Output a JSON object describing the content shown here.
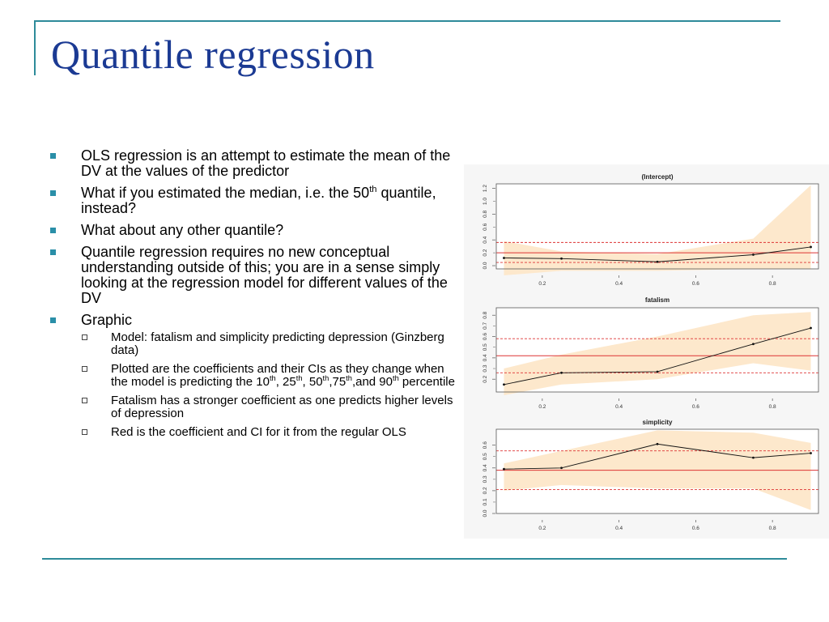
{
  "slide": {
    "title": "Quantile regression",
    "bullets": [
      {
        "text": "OLS regression is an attempt to estimate the mean of the DV at the values of the predictor"
      },
      {
        "text": "What if you estimated the median, i.e. the 50",
        "sup": "th",
        "after": " quantile, instead?"
      },
      {
        "text": "What about any other quantile?"
      },
      {
        "text": "Quantile regression requires no new conceptual understanding outside of this; you are in a sense simply looking at the regression model for different values of the DV"
      },
      {
        "text": "Graphic"
      }
    ],
    "subbullets": [
      {
        "text": "Model: fatalism and simplicity predicting depression (Ginzberg data)"
      },
      {
        "text": "Plotted are the coefficients and their CIs as they change when the model is predicting the 10",
        "sup1": "th",
        "mid1": ", 25",
        "sup2": "th",
        "mid2": ", 50",
        "sup3": "th",
        "mid3": ",75",
        "sup4": "th",
        "mid4": ",and 90",
        "sup5": "th",
        "after": " percentile"
      },
      {
        "text": "Fatalism has a stronger coefficient as one predicts higher levels of depression"
      },
      {
        "text": "Red is the coefficient and CI for it from the regular OLS"
      }
    ]
  },
  "colors": {
    "title": "#1b3a93",
    "accent_line": "#2e8b9a",
    "bullet": "#2a8fa8",
    "ci_band": "#fde8cc",
    "ols": "#dd3333",
    "axis": "#555555"
  },
  "chart_data": [
    {
      "type": "line",
      "title": "(Intercept)",
      "x": [
        0.1,
        0.25,
        0.5,
        0.75,
        0.9
      ],
      "series": [
        {
          "values": [
            0.12,
            0.11,
            0.06,
            0.17,
            0.29
          ]
        }
      ],
      "ci_lower": [
        -0.15,
        -0.08,
        -0.08,
        -0.05,
        -0.05
      ],
      "ci_upper": [
        0.38,
        0.22,
        0.18,
        0.42,
        1.25
      ],
      "ols": {
        "coef": 0.2,
        "lower": 0.05,
        "upper": 0.36
      },
      "xlim": [
        0.08,
        0.92
      ],
      "ylim": [
        -0.05,
        1.27
      ],
      "xticks": [
        0.2,
        0.4,
        0.6,
        0.8
      ],
      "yticks": [
        0.0,
        0.4,
        0.8,
        1.2
      ],
      "ytick_labels": [
        "0.0",
        "0.4",
        "0.8",
        "1.2"
      ],
      "minor_yticks": [
        0.2,
        0.6,
        1.0
      ],
      "minor_ytick_labels": [
        "0.2",
        "0.6",
        "1.0"
      ]
    },
    {
      "type": "line",
      "title": "fatalism",
      "x": [
        0.1,
        0.25,
        0.5,
        0.75,
        0.9
      ],
      "series": [
        {
          "values": [
            0.15,
            0.26,
            0.27,
            0.53,
            0.68
          ]
        }
      ],
      "ci_lower": [
        0.05,
        0.15,
        0.2,
        0.35,
        0.28
      ],
      "ci_upper": [
        0.3,
        0.43,
        0.6,
        0.8,
        0.83
      ],
      "ols": {
        "coef": 0.42,
        "lower": 0.26,
        "upper": 0.58
      },
      "xlim": [
        0.08,
        0.92
      ],
      "ylim": [
        0.08,
        0.87
      ],
      "xticks": [
        0.2,
        0.4,
        0.6,
        0.8
      ],
      "yticks": [
        0.2,
        0.4,
        0.6,
        0.8
      ],
      "ytick_labels": [
        "0.2",
        "0.4",
        "0.6",
        "0.8"
      ],
      "minor_yticks": [
        0.3,
        0.5,
        0.7
      ],
      "minor_ytick_labels": [
        "0.3",
        "0.5",
        "0.7"
      ]
    },
    {
      "type": "line",
      "title": "simplicity",
      "x": [
        0.1,
        0.25,
        0.5,
        0.75,
        0.9
      ],
      "series": [
        {
          "values": [
            0.39,
            0.4,
            0.61,
            0.49,
            0.53
          ]
        }
      ],
      "ci_lower": [
        0.2,
        0.25,
        0.22,
        0.22,
        0.03
      ],
      "ci_upper": [
        0.44,
        0.55,
        0.73,
        0.71,
        0.62
      ],
      "ols": {
        "coef": 0.38,
        "lower": 0.21,
        "upper": 0.55
      },
      "xlim": [
        0.08,
        0.92
      ],
      "ylim": [
        0.0,
        0.74
      ],
      "xticks": [
        0.2,
        0.4,
        0.6,
        0.8
      ],
      "yticks": [
        0.0,
        0.2,
        0.4,
        0.6
      ],
      "ytick_labels": [
        "0.0",
        "0.2",
        "0.4",
        "0.6"
      ],
      "minor_yticks": [
        0.1,
        0.3,
        0.5
      ],
      "minor_ytick_labels": [
        "0.1",
        "0.3",
        "0.5"
      ]
    }
  ]
}
